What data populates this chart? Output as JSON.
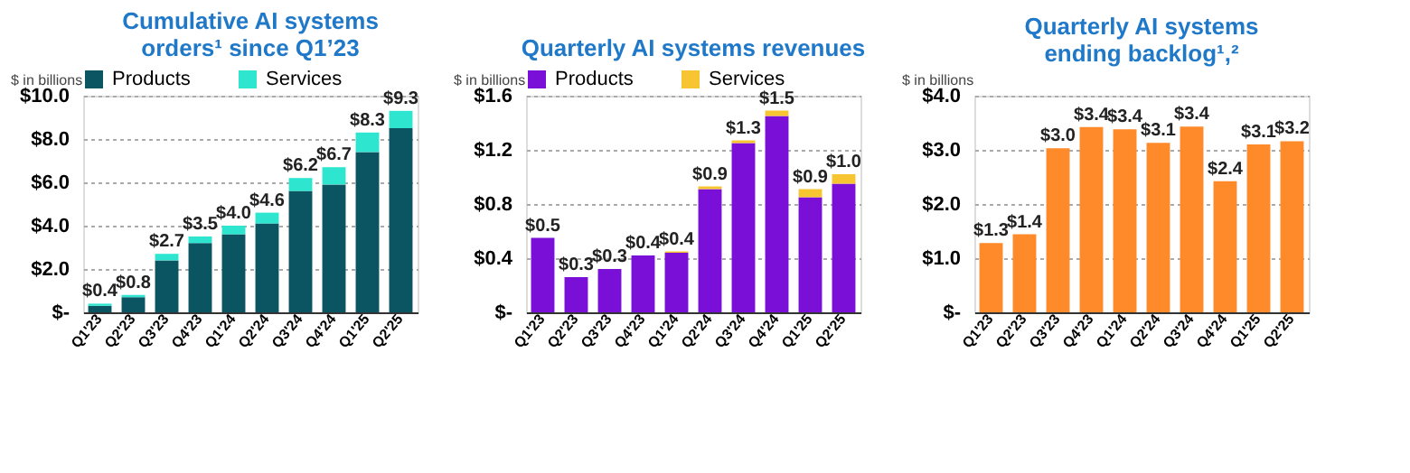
{
  "chart_data": [
    {
      "type": "bar",
      "title": "Cumulative AI systems\norders¹ since Q1’23",
      "ylabel": "$ in billions",
      "stacked": true,
      "legend": "top",
      "grid": "y",
      "categories": [
        "Q1'23",
        "Q2'23",
        "Q3'23",
        "Q4'23",
        "Q1'24",
        "Q2'24",
        "Q3'24",
        "Q4'24",
        "Q1'25",
        "Q2'25"
      ],
      "series": [
        {
          "name": "Products",
          "color": "#0b5563",
          "values": [
            0.3,
            0.7,
            2.4,
            3.2,
            3.6,
            4.1,
            5.6,
            5.9,
            7.4,
            8.5
          ]
        },
        {
          "name": "Services",
          "color": "#2ee6d0",
          "values": [
            0.1,
            0.1,
            0.3,
            0.3,
            0.4,
            0.5,
            0.6,
            0.8,
            0.9,
            0.8
          ]
        }
      ],
      "totals": [
        "$0.4",
        "$0.8",
        "$2.7",
        "$3.5",
        "$4.0",
        "$4.6",
        "$6.2",
        "$6.7",
        "$8.3",
        "$9.3"
      ],
      "ylim": [
        0,
        10
      ],
      "yticks": [
        {
          "value": 0,
          "label": "$-"
        },
        {
          "value": 2,
          "label": "$2.0"
        },
        {
          "value": 4,
          "label": "$4.0"
        },
        {
          "value": 6,
          "label": "$6.0"
        },
        {
          "value": 8,
          "label": "$8.0"
        },
        {
          "value": 10,
          "label": "$10.0"
        }
      ]
    },
    {
      "type": "bar",
      "title": "Quarterly AI systems revenues",
      "ylabel": "$ in billions",
      "stacked": true,
      "legend": "top",
      "grid": "y",
      "categories": [
        "Q1'23",
        "Q2'23",
        "Q3'23",
        "Q4'23",
        "Q1'24",
        "Q2'24",
        "Q3'24",
        "Q4'24",
        "Q1'25",
        "Q2'25"
      ],
      "series": [
        {
          "name": "Products",
          "color": "#7a10d8",
          "values": [
            0.55,
            0.26,
            0.32,
            0.42,
            0.44,
            0.91,
            1.25,
            1.45,
            0.85,
            0.95
          ]
        },
        {
          "name": "Services",
          "color": "#f7c531",
          "values": [
            0,
            0,
            0,
            0,
            0.01,
            0.02,
            0.02,
            0.04,
            0.06,
            0.07
          ]
        }
      ],
      "totals": [
        "$0.5",
        "$0.3",
        "$0.3",
        "$0.4",
        "$0.4",
        "$0.9",
        "$1.3",
        "$1.5",
        "$0.9",
        "$1.0"
      ],
      "ylim": [
        0,
        1.6
      ],
      "yticks": [
        {
          "value": 0,
          "label": "$-"
        },
        {
          "value": 0.4,
          "label": "$0.4"
        },
        {
          "value": 0.8,
          "label": "$0.8"
        },
        {
          "value": 1.2,
          "label": "$1.2"
        },
        {
          "value": 1.6,
          "label": "$1.6"
        }
      ]
    },
    {
      "type": "bar",
      "title": "Quarterly AI systems\nending backlog¹,²",
      "ylabel": "$ in billions",
      "grid": "y",
      "categories": [
        "Q1'23",
        "Q2'23",
        "Q3'23",
        "Q4'23",
        "Q1'24",
        "Q2'24",
        "Q3'24",
        "Q4'24",
        "Q1'25",
        "Q2'25"
      ],
      "series": [
        {
          "color": "#ff8a2a",
          "values": [
            1.28,
            1.44,
            3.03,
            3.42,
            3.38,
            3.13,
            3.43,
            2.42,
            3.1,
            3.16
          ],
          "value_labels": [
            "$1.3",
            "$1.4",
            "$3.0",
            "$3.4",
            "$3.4",
            "$3.1",
            "$3.4",
            "$2.4",
            "$3.1",
            "$3.2"
          ]
        }
      ],
      "ylim": [
        0,
        4
      ],
      "yticks": [
        {
          "value": 0,
          "label": "$-"
        },
        {
          "value": 1,
          "label": "$1.0"
        },
        {
          "value": 2,
          "label": "$2.0"
        },
        {
          "value": 3,
          "label": "$3.0"
        },
        {
          "value": 4,
          "label": "$4.0"
        }
      ]
    }
  ]
}
